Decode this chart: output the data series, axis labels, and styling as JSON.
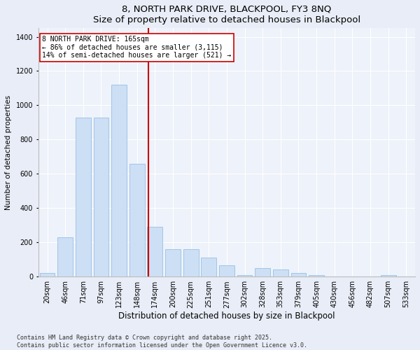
{
  "title": "8, NORTH PARK DRIVE, BLACKPOOL, FY3 8NQ",
  "subtitle": "Size of property relative to detached houses in Blackpool",
  "xlabel": "Distribution of detached houses by size in Blackpool",
  "ylabel": "Number of detached properties",
  "categories": [
    "20sqm",
    "46sqm",
    "71sqm",
    "97sqm",
    "123sqm",
    "148sqm",
    "174sqm",
    "200sqm",
    "225sqm",
    "251sqm",
    "277sqm",
    "302sqm",
    "328sqm",
    "353sqm",
    "379sqm",
    "405sqm",
    "430sqm",
    "456sqm",
    "482sqm",
    "507sqm",
    "533sqm"
  ],
  "values": [
    20,
    230,
    930,
    930,
    1120,
    660,
    290,
    160,
    160,
    110,
    65,
    10,
    50,
    40,
    20,
    10,
    0,
    0,
    0,
    10,
    0
  ],
  "bar_color": "#ccdff5",
  "bar_edge_color": "#89b8df",
  "vline_color": "#cc0000",
  "vline_pos": 5.65,
  "annotation_text": "8 NORTH PARK DRIVE: 165sqm\n← 86% of detached houses are smaller (3,115)\n14% of semi-detached houses are larger (521) →",
  "annotation_box_color": "#ffffff",
  "annotation_box_edge_color": "#cc0000",
  "ylim": [
    0,
    1450
  ],
  "yticks": [
    0,
    200,
    400,
    600,
    800,
    1000,
    1200,
    1400
  ],
  "bg_color": "#e8edf7",
  "plot_bg_color": "#eef2fa",
  "footer": "Contains HM Land Registry data © Crown copyright and database right 2025.\nContains public sector information licensed under the Open Government Licence v3.0.",
  "title_fontsize": 9.5,
  "xlabel_fontsize": 8.5,
  "ylabel_fontsize": 7.5,
  "tick_fontsize": 7,
  "annotation_fontsize": 7,
  "footer_fontsize": 6
}
